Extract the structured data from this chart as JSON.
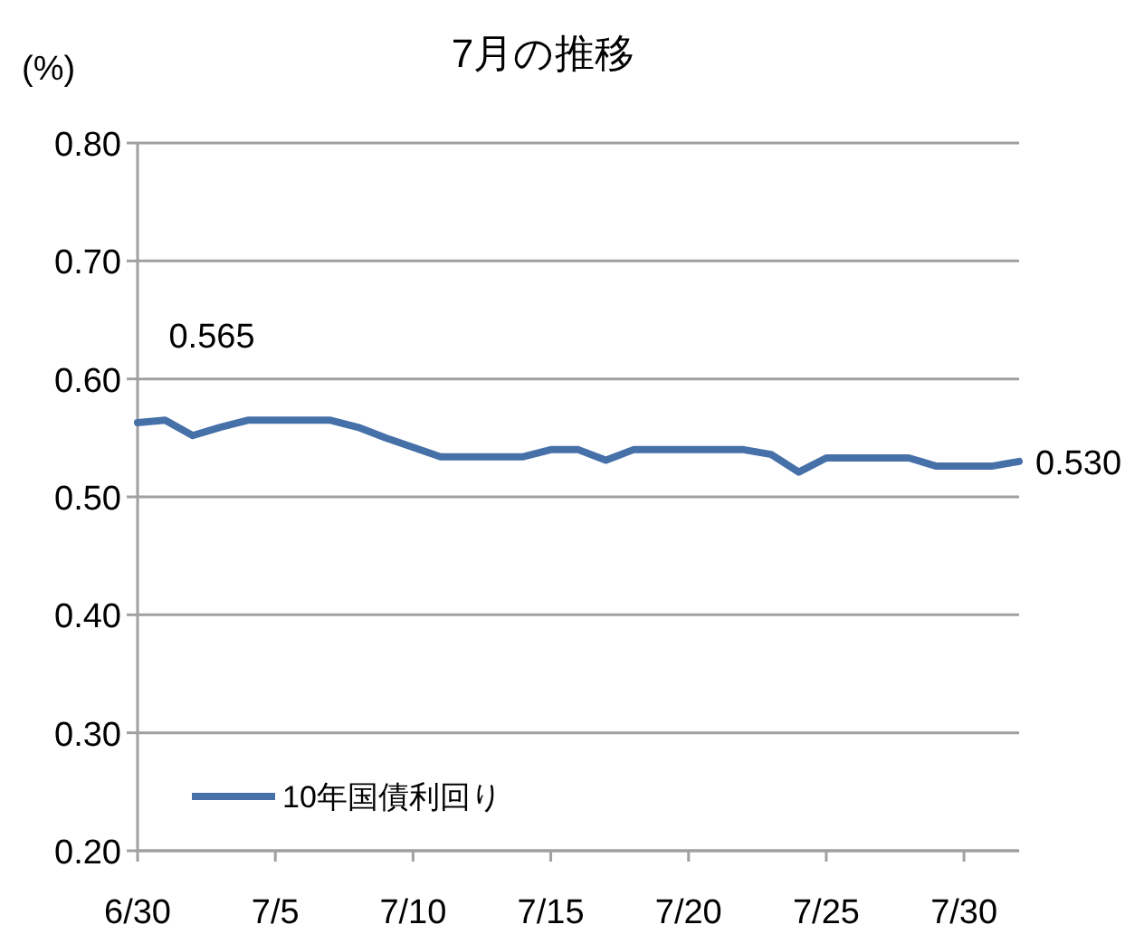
{
  "chart_data": {
    "type": "line",
    "title": "7月の推移",
    "ylabel": "(%)",
    "x": [
      "--06-30",
      "--07-01",
      "--07-02",
      "--07-03",
      "--07-04",
      "--07-07",
      "--07-08",
      "--07-09",
      "--07-11",
      "--07-14",
      "--07-15",
      "--07-16",
      "--07-17",
      "--07-18",
      "--07-22",
      "--07-23",
      "--07-24",
      "--07-25",
      "--07-28",
      "--07-29",
      "--07-31",
      "--08-01"
    ],
    "series": [
      {
        "name": "10年国債利回り",
        "color": "#4571a8",
        "values": [
          0.563,
          0.565,
          0.552,
          0.559,
          0.565,
          0.565,
          0.559,
          0.55,
          0.534,
          0.534,
          0.54,
          0.54,
          0.531,
          0.54,
          0.54,
          0.536,
          0.521,
          0.533,
          0.533,
          0.526,
          0.526,
          0.53
        ]
      }
    ],
    "annotations": [
      {
        "text": "0.565",
        "x": "--07-01",
        "y": 0.565
      },
      {
        "text": "0.530",
        "x": "--08-01",
        "y": 0.53
      }
    ],
    "xlim": [
      "--06-30",
      "--08-01"
    ],
    "xticks": [
      {
        "value": "--06-30",
        "label": "6/30"
      },
      {
        "value": "--07-05",
        "label": "7/5"
      },
      {
        "value": "--07-10",
        "label": "7/10"
      },
      {
        "value": "--07-15",
        "label": "7/15"
      },
      {
        "value": "--07-20",
        "label": "7/20"
      },
      {
        "value": "--07-25",
        "label": "7/25"
      },
      {
        "value": "--07-30",
        "label": "7/30"
      }
    ],
    "ylim": [
      0.2,
      0.8
    ],
    "yticks": [
      {
        "value": 0.2,
        "label": "0.20"
      },
      {
        "value": 0.3,
        "label": "0.30"
      },
      {
        "value": 0.4,
        "label": "0.40"
      },
      {
        "value": 0.5,
        "label": "0.50"
      },
      {
        "value": 0.6,
        "label": "0.60"
      },
      {
        "value": 0.7,
        "label": "0.70"
      },
      {
        "value": 0.8,
        "label": "0.80"
      }
    ],
    "grid": "y",
    "legend": "bottom left",
    "marker": "none",
    "line_style": "solid"
  }
}
